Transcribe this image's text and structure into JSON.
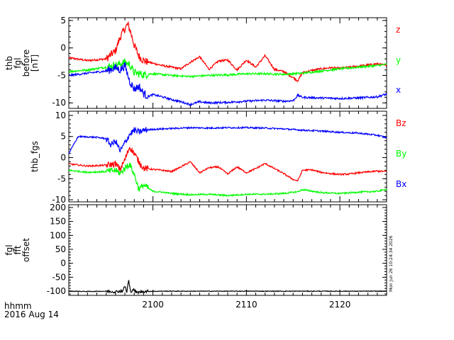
{
  "colors": {
    "red": "#ff0000",
    "green": "#00ff00",
    "blue": "#0000ff",
    "black": "#000000"
  },
  "bottom_label": {
    "line1": "hhmm",
    "line2": "2016 Aug 14"
  },
  "timestamp": "Mon Jun 26 10:24:34 2026",
  "chart_data": [
    {
      "type": "line",
      "ylabel": [
        "thb",
        "fgl",
        "before",
        "[nT]"
      ],
      "xlim": [
        2091,
        2125
      ],
      "ylim": [
        -11,
        5.5
      ],
      "yticks": [
        5,
        0,
        -5,
        -10
      ],
      "ytick_labels": [
        "5",
        "0",
        "-5",
        "-10"
      ],
      "series": [
        {
          "name": "z",
          "color": "#ff0000",
          "x": [
            2091,
            2093,
            2095,
            2096,
            2096.5,
            2097,
            2097.3,
            2097.6,
            2098,
            2098.5,
            2099,
            2100,
            2101,
            2102,
            2103,
            2104,
            2105,
            2106,
            2107,
            2108,
            2109,
            2110,
            2111,
            2112,
            2113,
            2114,
            2115,
            2115.5,
            2116,
            2117,
            2118,
            2119,
            2120,
            2121,
            2122,
            2123,
            2124,
            2125
          ],
          "y": [
            -1.8,
            -2.3,
            -2.0,
            -0.5,
            2,
            3.5,
            4.3,
            3,
            0.5,
            -1.5,
            -2.3,
            -2.8,
            -3.2,
            -3.5,
            -3.8,
            -2.6,
            -1.6,
            -3.9,
            -2.4,
            -2.2,
            -4.0,
            -2.2,
            -3.5,
            -1.4,
            -3.9,
            -4.3,
            -5.4,
            -6.0,
            -4.5,
            -4.1,
            -3.8,
            -3.6,
            -3.7,
            -3.5,
            -3.3,
            -3.1,
            -2.9,
            -3.2
          ]
        },
        {
          "name": "y",
          "color": "#00ff00",
          "x": [
            2091,
            2093,
            2095,
            2096,
            2097,
            2097.5,
            2098,
            2099,
            2100,
            2102,
            2104,
            2106,
            2108,
            2110,
            2112,
            2114,
            2116,
            2118,
            2120,
            2122,
            2124,
            2125
          ],
          "y": [
            -4.3,
            -4.0,
            -3.5,
            -3.2,
            -2.6,
            -3.0,
            -4.5,
            -4.9,
            -4.7,
            -5.0,
            -5.2,
            -5.0,
            -4.9,
            -4.7,
            -4.7,
            -4.8,
            -4.6,
            -4.2,
            -3.8,
            -3.5,
            -3.2,
            -3.0
          ]
        },
        {
          "name": "x",
          "color": "#0000ff",
          "x": [
            2091,
            2093,
            2095,
            2096,
            2096.5,
            2097,
            2097.5,
            2098,
            2098.5,
            2099,
            2099.5,
            2100,
            2101,
            2102,
            2103,
            2104,
            2105,
            2106,
            2108,
            2110,
            2112,
            2114,
            2115,
            2115.5,
            2116,
            2118,
            2120,
            2122,
            2124,
            2125
          ],
          "y": [
            -5.0,
            -4.6,
            -4.2,
            -3.6,
            -4.0,
            -3.2,
            -6.0,
            -7.5,
            -7.0,
            -8.3,
            -8.8,
            -8.5,
            -8.9,
            -9.4,
            -9.8,
            -10.3,
            -9.8,
            -10.0,
            -9.9,
            -9.7,
            -9.5,
            -9.7,
            -9.6,
            -8.6,
            -9.0,
            -9.1,
            -9.2,
            -9.1,
            -8.9,
            -8.4
          ]
        }
      ]
    },
    {
      "type": "line",
      "ylabel": [
        "thb_fgs"
      ],
      "xlim": [
        2091,
        2125
      ],
      "ylim": [
        -10.5,
        11
      ],
      "yticks": [
        10,
        5,
        0,
        -5,
        -10
      ],
      "ytick_labels": [
        "10",
        "5",
        "0",
        "-5",
        "-10"
      ],
      "series": [
        {
          "name": "Bz",
          "color": "#ff0000",
          "x": [
            2091,
            2093,
            2095,
            2096,
            2096.5,
            2097,
            2097.5,
            2098,
            2098.5,
            2099,
            2100,
            2101,
            2102,
            2103,
            2104,
            2105,
            2106,
            2107,
            2108,
            2109,
            2110,
            2111,
            2112,
            2113,
            2114,
            2115,
            2115.5,
            2116,
            2117,
            2118,
            2119,
            2120,
            2121,
            2122,
            2123,
            2124,
            2125
          ],
          "y": [
            -1.5,
            -2.0,
            -1.8,
            -1.5,
            -2.8,
            -0.5,
            2.5,
            1.0,
            -1.0,
            -2.5,
            -2.8,
            -3.0,
            -3.3,
            -2.2,
            -1.0,
            -3.6,
            -2.4,
            -2.2,
            -3.9,
            -2.2,
            -3.6,
            -2.6,
            -1.4,
            -2.6,
            -3.8,
            -5.2,
            -5.5,
            -3.0,
            -2.9,
            -3.5,
            -3.8,
            -4.0,
            -3.9,
            -3.6,
            -3.4,
            -3.2,
            -3.3
          ]
        },
        {
          "name": "By",
          "color": "#00ff00",
          "x": [
            2091,
            2093,
            2095,
            2096,
            2096.5,
            2097,
            2097.5,
            2098,
            2098.5,
            2099,
            2100,
            2101,
            2102,
            2104,
            2106,
            2108,
            2110,
            2112,
            2114,
            2115.5,
            2116,
            2118,
            2120,
            2122,
            2124,
            2125
          ],
          "y": [
            -3.0,
            -3.5,
            -3.3,
            -3.0,
            -3.8,
            -2.5,
            -1.5,
            -4.0,
            -7.5,
            -6.5,
            -8.0,
            -8.2,
            -8.5,
            -8.8,
            -8.7,
            -9.0,
            -8.7,
            -8.7,
            -8.5,
            -8.1,
            -7.6,
            -8.3,
            -8.5,
            -8.2,
            -8.0,
            -7.5
          ]
        },
        {
          "name": "Bx",
          "color": "#0000ff",
          "x": [
            2091,
            2092,
            2094,
            2095,
            2095.5,
            2096,
            2096.5,
            2097,
            2097.5,
            2098,
            2098.5,
            2099,
            2100,
            2102,
            2104,
            2106,
            2108,
            2110,
            2112,
            2114,
            2116,
            2118,
            2120,
            2122,
            2124,
            2125
          ],
          "y": [
            1,
            5.0,
            4.8,
            4.5,
            3.0,
            4.0,
            1.5,
            3.5,
            5.5,
            6.5,
            6.0,
            6.5,
            6.7,
            6.9,
            7.1,
            7.0,
            7.1,
            7.1,
            7.0,
            6.8,
            6.5,
            6.3,
            6.0,
            5.8,
            5.3,
            4.7
          ]
        }
      ]
    },
    {
      "type": "line",
      "ylabel": [
        "fgl",
        "fft",
        "offset"
      ],
      "xlim": [
        2091,
        2125
      ],
      "ylim": [
        -115,
        210
      ],
      "yticks": [
        200,
        150,
        100,
        50,
        0,
        -50,
        -100
      ],
      "ytick_labels": [
        "200",
        "150",
        "100",
        "50",
        "0",
        "-50",
        "-100"
      ],
      "series": [
        {
          "name": "",
          "color": "#000000",
          "x": [
            2091,
            2093,
            2095,
            2096,
            2096.8,
            2097,
            2097.2,
            2097.4,
            2097.6,
            2097.9,
            2098.2,
            2099,
            2101,
            2105,
            2110,
            2115,
            2120,
            2125
          ],
          "y": [
            -100,
            -101,
            -100,
            -102,
            -98,
            -80,
            -105,
            -60,
            -103,
            -92,
            -105,
            -101,
            -100,
            -100,
            -100,
            -100,
            -100,
            -100
          ]
        }
      ]
    }
  ],
  "xaxis": {
    "xlim": [
      2091,
      2125
    ],
    "ticks": [
      2100,
      2110,
      2120
    ],
    "tick_labels": [
      "2100",
      "2110",
      "2120"
    ]
  },
  "legends": [
    [
      "z",
      "y",
      "x"
    ],
    [
      "Bz",
      "By",
      "Bx"
    ]
  ]
}
